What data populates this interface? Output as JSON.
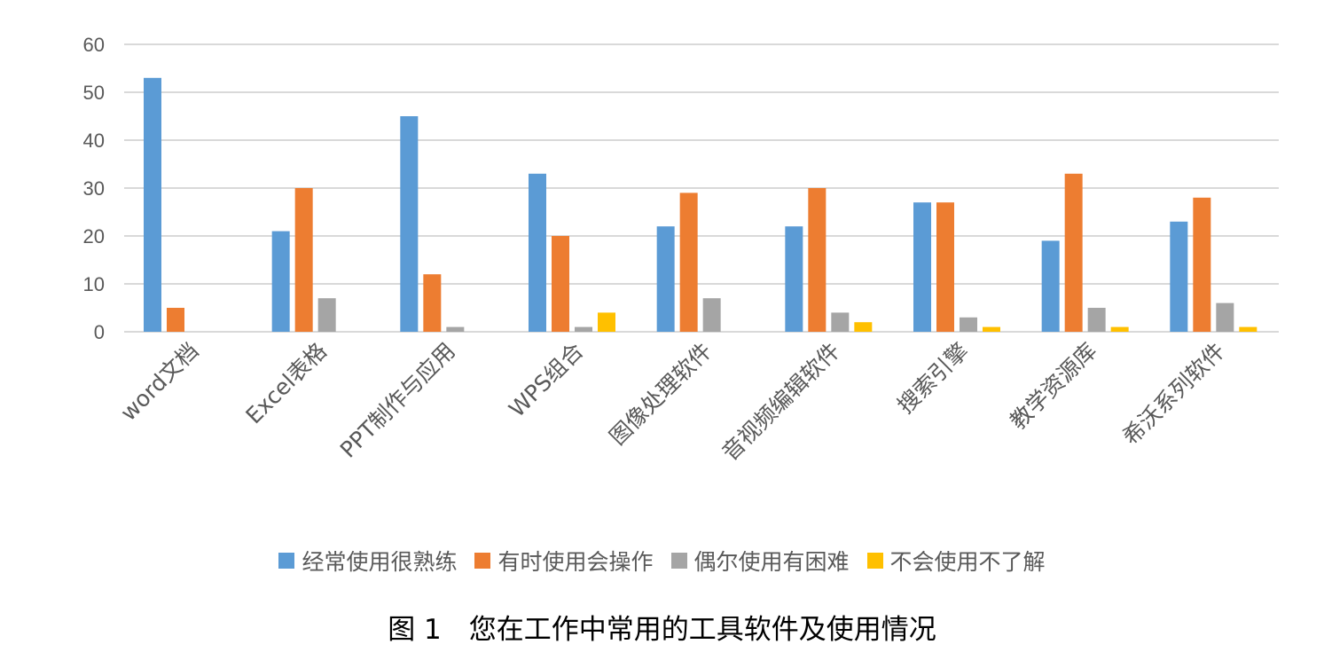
{
  "chart_data": {
    "type": "bar",
    "title": "",
    "xlabel": "",
    "ylabel": "",
    "ylim": [
      0,
      60
    ],
    "yticks": [
      0,
      10,
      20,
      30,
      40,
      50,
      60
    ],
    "grid": true,
    "legend_position": "bottom",
    "categories": [
      "word文档",
      "Excel表格",
      "PPT制作与应用",
      "WPS组合",
      "图像处理软件",
      "音视频编辑软件",
      "搜索引擎",
      "教学资源库",
      "希沃系列软件"
    ],
    "series": [
      {
        "name": "经常使用很熟练",
        "color": "#5B9BD5",
        "values": [
          53,
          21,
          45,
          33,
          22,
          22,
          27,
          19,
          23
        ]
      },
      {
        "name": "有时使用会操作",
        "color": "#ED7D31",
        "values": [
          5,
          30,
          12,
          20,
          29,
          30,
          27,
          33,
          28
        ]
      },
      {
        "name": "偶尔使用有困难",
        "color": "#A5A5A5",
        "values": [
          0,
          7,
          1,
          1,
          7,
          4,
          3,
          5,
          6
        ]
      },
      {
        "name": "不会使用不了解",
        "color": "#FFC000",
        "values": [
          0,
          0,
          0,
          4,
          0,
          2,
          1,
          1,
          1
        ]
      }
    ]
  },
  "caption": "图 1　您在工作中常用的工具软件及使用情况",
  "colors": {
    "gridline": "#D9D9D9",
    "axis_text": "#595959"
  }
}
